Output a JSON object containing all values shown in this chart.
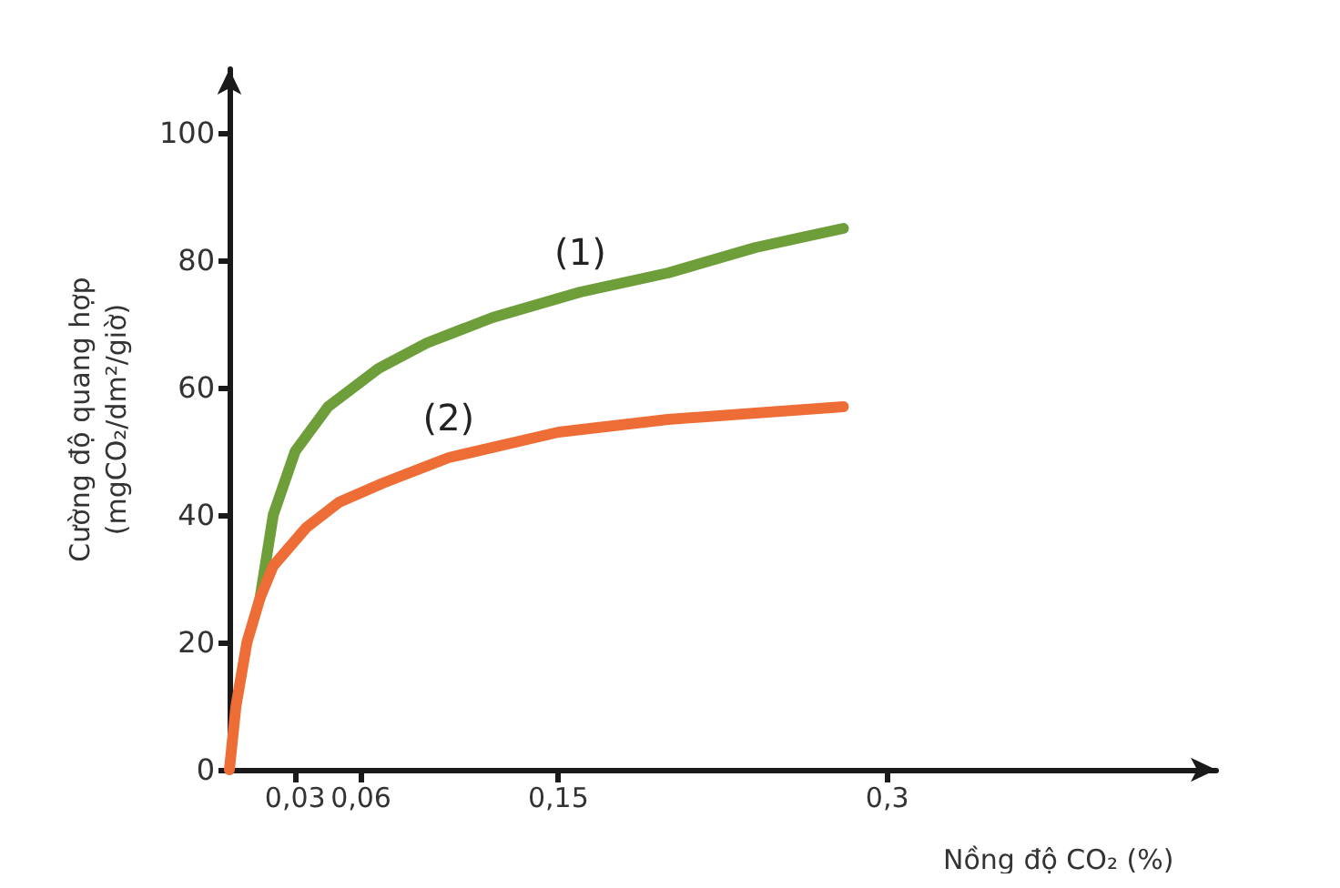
{
  "chart_data": {
    "type": "line",
    "xlabel": "Nồng độ CO₂ (%)",
    "ylabel": "Cường độ quang hợp\n(mgCO₂/dm²/giờ)",
    "xlim": [
      0,
      0.45
    ],
    "ylim": [
      0,
      110
    ],
    "xticks": [
      {
        "value": 0.03,
        "label": "0,03"
      },
      {
        "value": 0.06,
        "label": "0,06"
      },
      {
        "value": 0.15,
        "label": "0,15"
      },
      {
        "value": 0.3,
        "label": "0,3"
      }
    ],
    "yticks": [
      0,
      20,
      40,
      60,
      80,
      100
    ],
    "grid": false,
    "marker": "none",
    "line_style": "solid",
    "series": [
      {
        "color": "#6e9e3a",
        "x": [
          0.014,
          0.02,
          0.03,
          0.045,
          0.068,
          0.09,
          0.12,
          0.16,
          0.2,
          0.24,
          0.28
        ],
        "values": [
          27,
          40,
          50,
          57,
          63,
          67,
          71,
          75,
          78,
          82,
          85
        ]
      },
      {
        "color": "#ee6c35",
        "x": [
          0,
          0.003,
          0.008,
          0.014,
          0.02,
          0.035,
          0.05,
          0.07,
          0.1,
          0.15,
          0.2,
          0.24,
          0.28
        ],
        "values": [
          0,
          10,
          20,
          27,
          32,
          38,
          42,
          45,
          49,
          53,
          55,
          56,
          57
        ]
      }
    ],
    "annotations": [
      "(1)",
      "(2)"
    ]
  }
}
